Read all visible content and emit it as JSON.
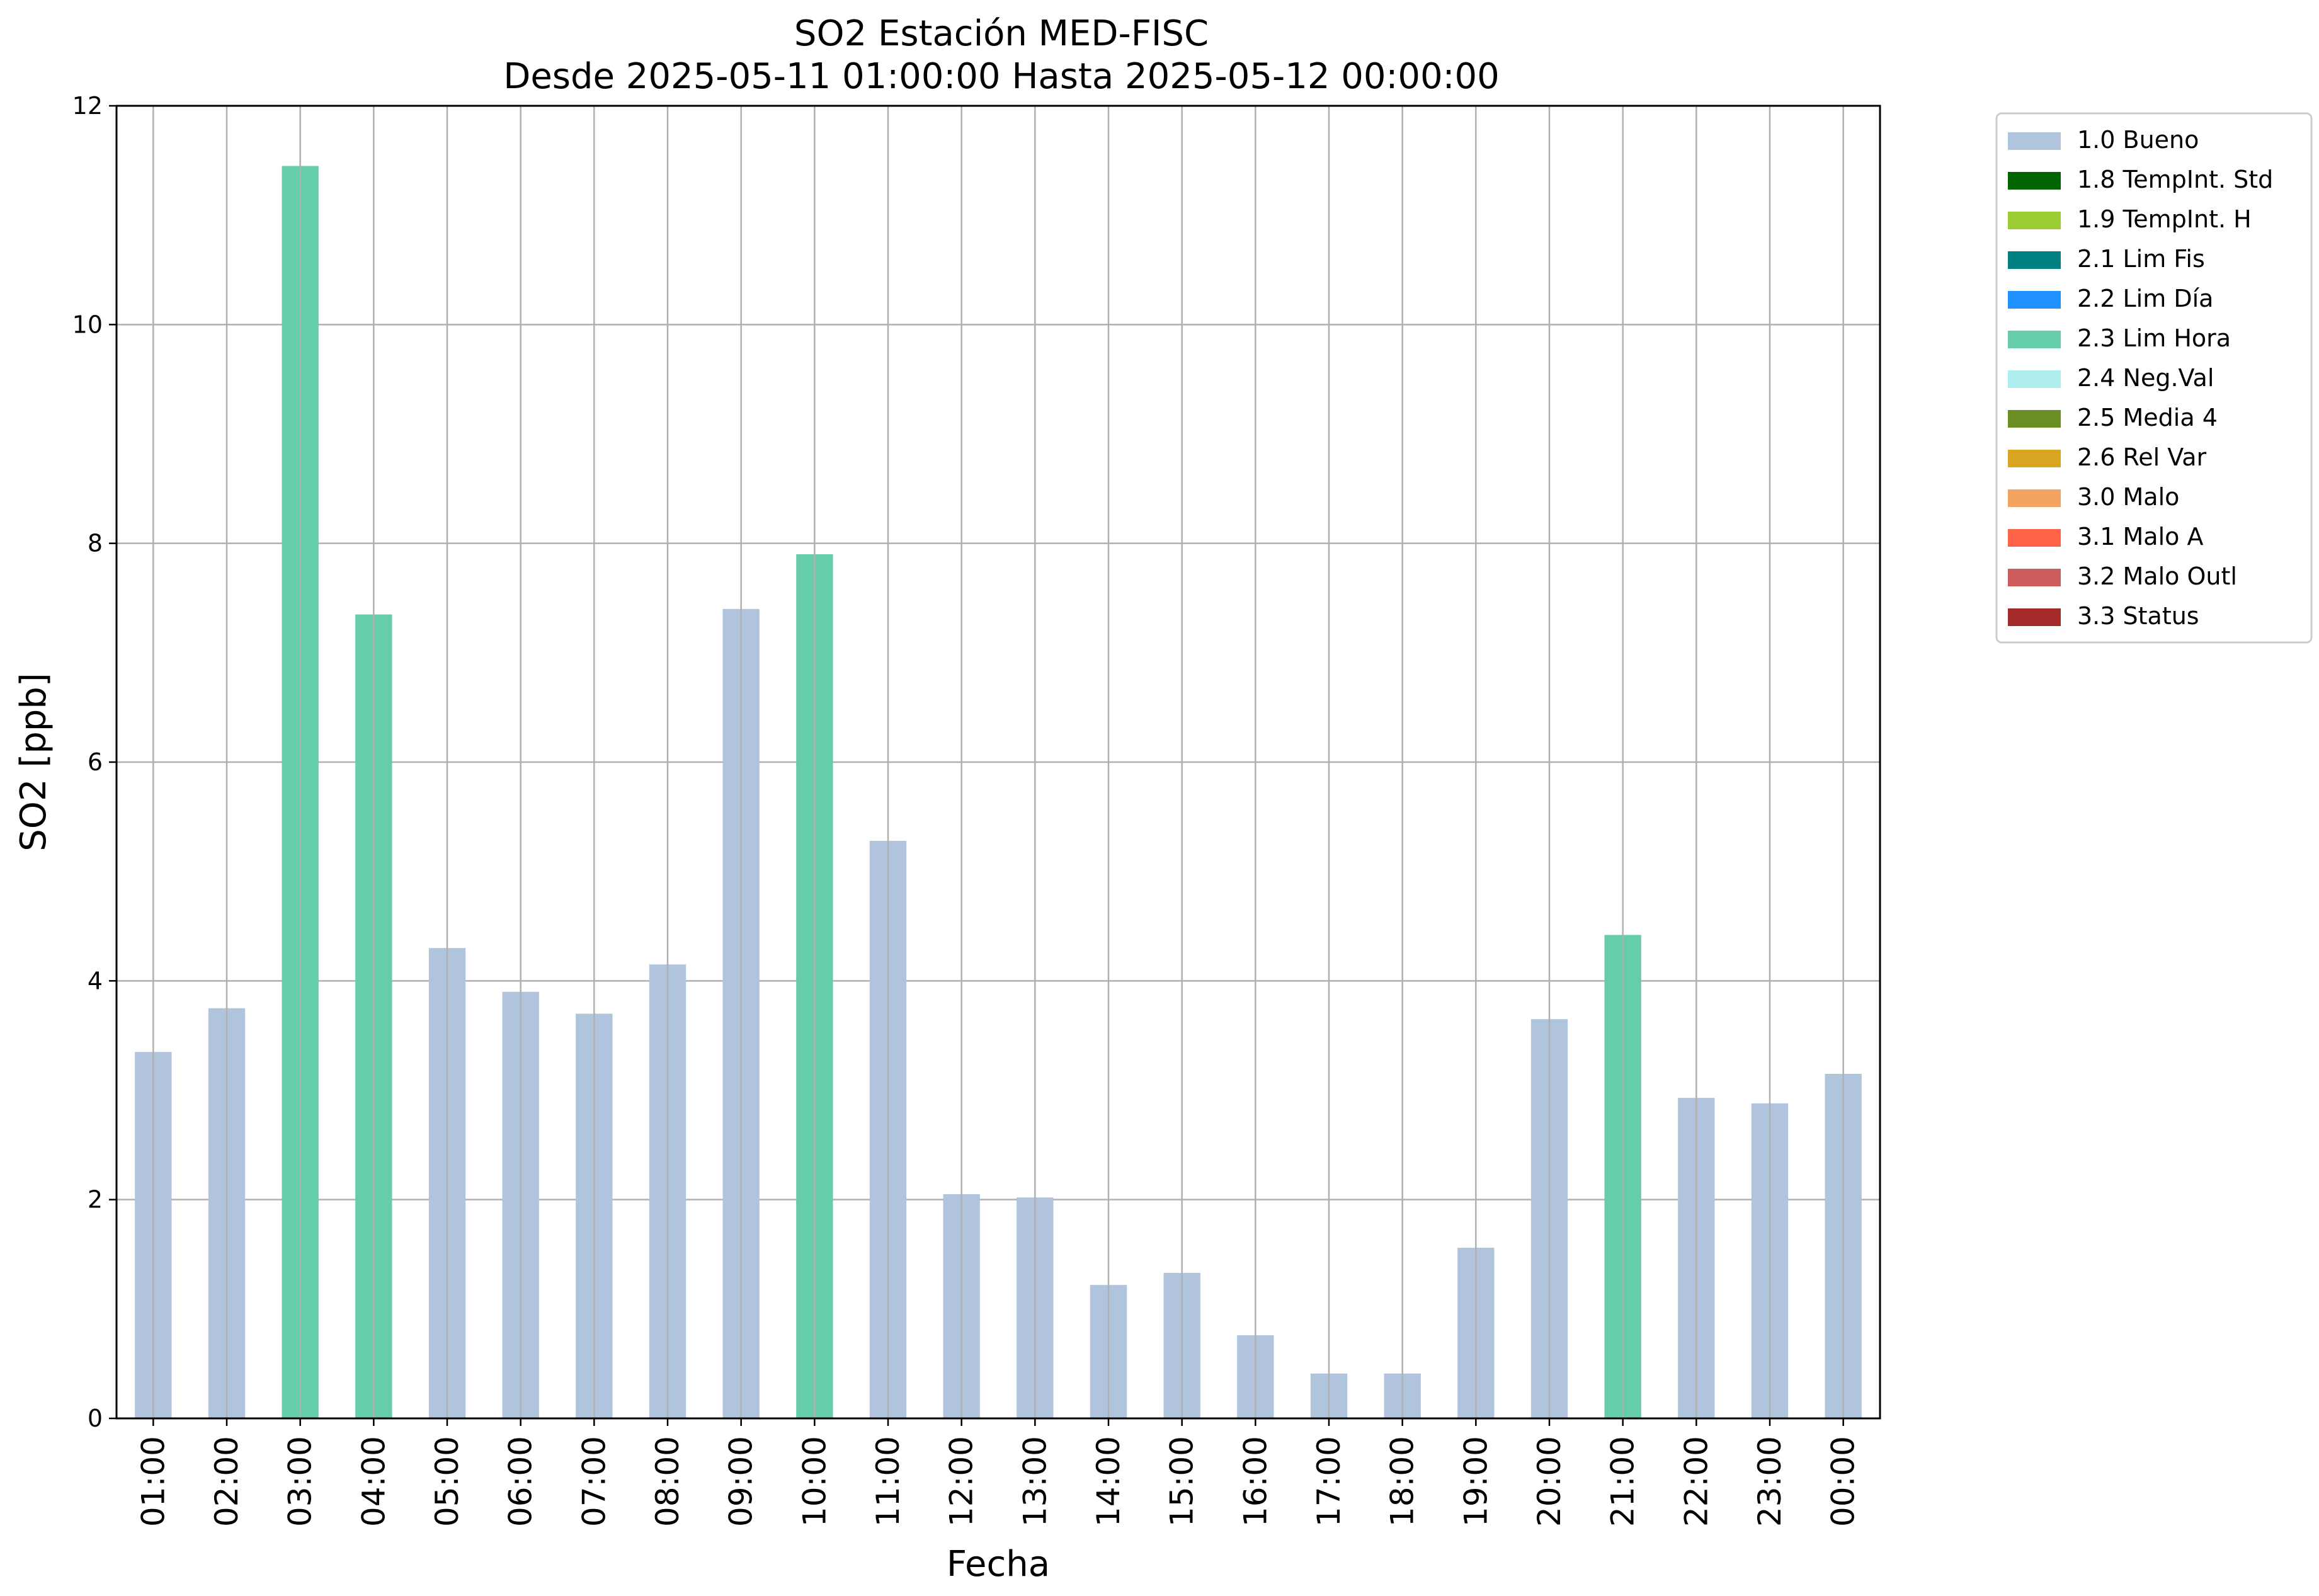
{
  "chart_data": {
    "type": "bar",
    "title": "SO2 Estación MED-FISC",
    "subtitle": "Desde 2025-05-11 01:00:00 Hasta 2025-05-12 00:00:00",
    "xlabel": "Fecha",
    "ylabel": "SO2 [ppb]",
    "ylim": [
      0,
      12
    ],
    "yticks": [
      0,
      2,
      4,
      6,
      8,
      10,
      12
    ],
    "grid": true,
    "legend_position": "outside-right-top",
    "categories": [
      "01:00",
      "02:00",
      "03:00",
      "04:00",
      "05:00",
      "06:00",
      "07:00",
      "08:00",
      "09:00",
      "10:00",
      "11:00",
      "12:00",
      "13:00",
      "14:00",
      "15:00",
      "16:00",
      "17:00",
      "18:00",
      "19:00",
      "20:00",
      "21:00",
      "22:00",
      "23:00",
      "00:00"
    ],
    "values": [
      3.35,
      3.75,
      11.45,
      7.35,
      4.3,
      3.9,
      3.7,
      4.15,
      7.4,
      7.9,
      5.28,
      2.05,
      2.02,
      1.22,
      1.33,
      0.76,
      0.41,
      0.41,
      1.56,
      3.65,
      4.42,
      2.93,
      2.88,
      3.15
    ],
    "flags": [
      "1.0 Bueno",
      "1.0 Bueno",
      "2.3 Lim Hora",
      "2.3 Lim Hora",
      "1.0 Bueno",
      "1.0 Bueno",
      "1.0 Bueno",
      "1.0 Bueno",
      "1.0 Bueno",
      "2.3 Lim Hora",
      "1.0 Bueno",
      "1.0 Bueno",
      "1.0 Bueno",
      "1.0 Bueno",
      "1.0 Bueno",
      "1.0 Bueno",
      "1.0 Bueno",
      "1.0 Bueno",
      "1.0 Bueno",
      "1.0 Bueno",
      "2.3 Lim Hora",
      "1.0 Bueno",
      "1.0 Bueno",
      "1.0 Bueno"
    ],
    "legend": [
      {
        "label": "1.0 Bueno",
        "color": "#b0c4de"
      },
      {
        "label": "1.8 TempInt. Std",
        "color": "#006400"
      },
      {
        "label": "1.9 TempInt. H",
        "color": "#9acd32"
      },
      {
        "label": "2.1 Lim Fis",
        "color": "#008080"
      },
      {
        "label": "2.2 Lim Día",
        "color": "#1e90ff"
      },
      {
        "label": "2.3 Lim Hora",
        "color": "#66cdaa"
      },
      {
        "label": "2.4 Neg.Val",
        "color": "#afeeee"
      },
      {
        "label": "2.5 Media 4",
        "color": "#6b8e23"
      },
      {
        "label": "2.6 Rel Var",
        "color": "#daa520"
      },
      {
        "label": "3.0 Malo",
        "color": "#f4a460"
      },
      {
        "label": "3.1 Malo A",
        "color": "#ff6347"
      },
      {
        "label": "3.2 Malo Outl",
        "color": "#cd5c5c"
      },
      {
        "label": "3.3 Status",
        "color": "#a52a2a"
      }
    ]
  }
}
